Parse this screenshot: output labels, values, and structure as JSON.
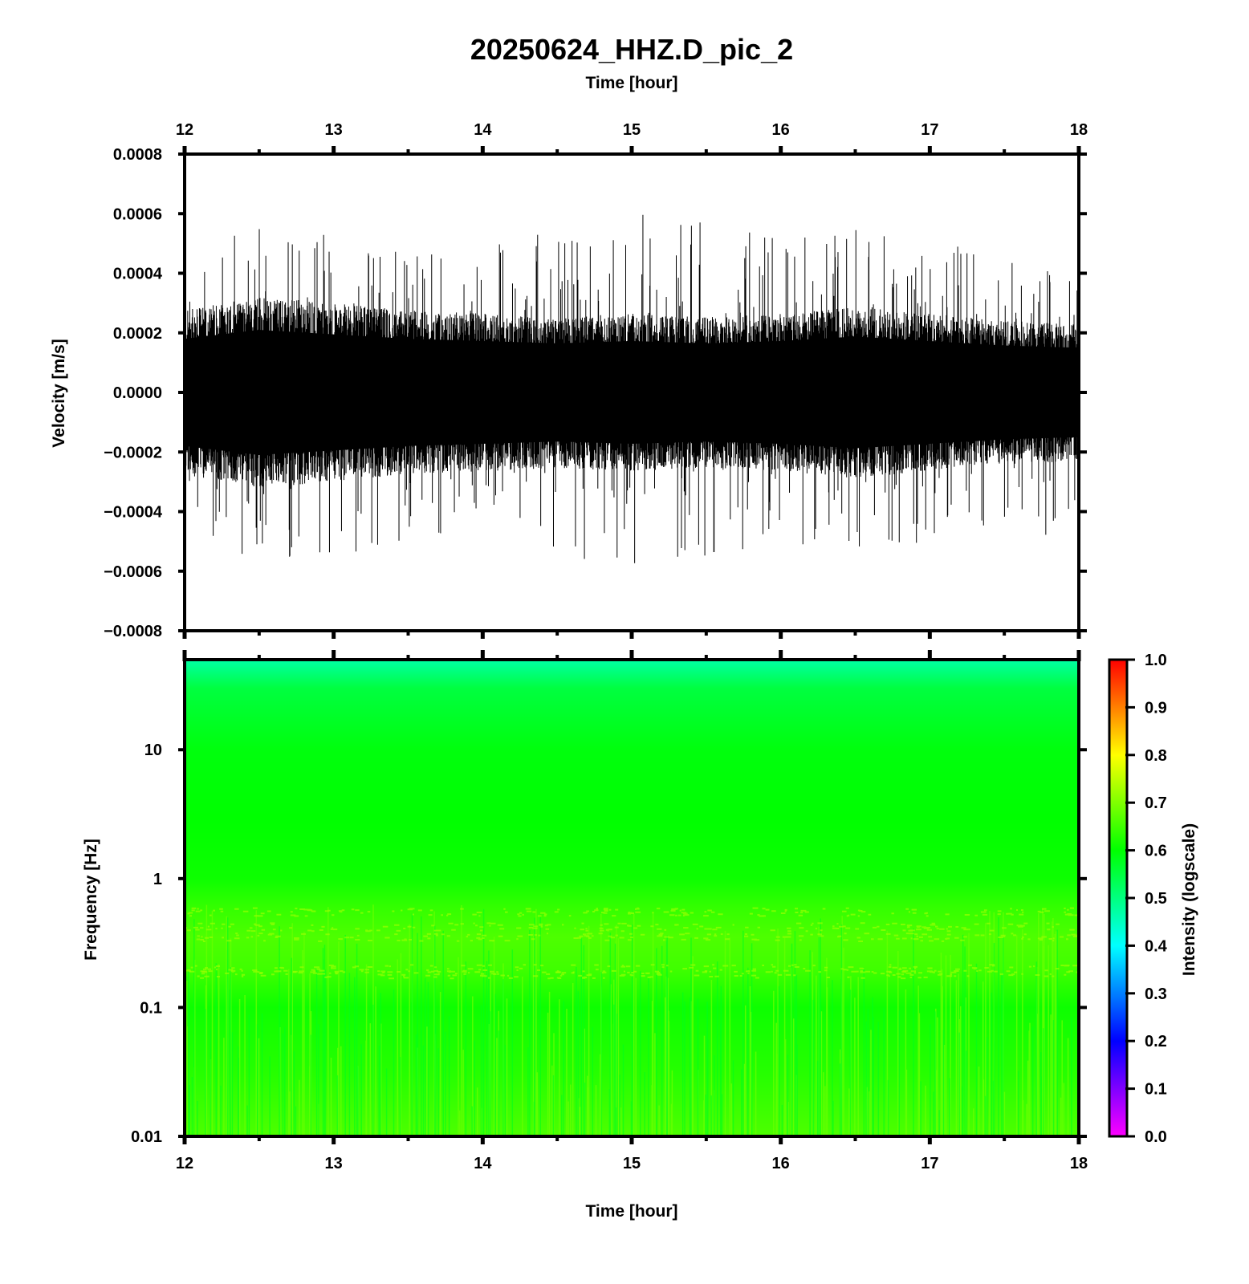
{
  "title": "20250624_HHZ.D_pic_2",
  "chart_data": [
    {
      "type": "line",
      "name": "waveform",
      "xlabel": "Time [hour]",
      "ylabel": "Velocity [m/s]",
      "xlim": [
        12,
        18
      ],
      "ylim": [
        -0.0008,
        0.0008
      ],
      "x_ticks": [
        "12",
        "13",
        "14",
        "15",
        "16",
        "17",
        "18"
      ],
      "y_ticks": [
        "0.0008",
        "0.0006",
        "0.0004",
        "0.0002",
        "0.0000",
        "−0.0002",
        "−0.0004",
        "−0.0006",
        "−0.0008"
      ],
      "x_tick_values": [
        12,
        13,
        14,
        15,
        16,
        17,
        18
      ],
      "y_tick_values": [
        0.0008,
        0.0006,
        0.0004,
        0.0002,
        0.0,
        -0.0002,
        -0.0004,
        -0.0006,
        -0.0008
      ],
      "envelope": {
        "x": [
          12,
          12.5,
          13,
          13.5,
          14,
          14.5,
          15,
          15.5,
          16,
          16.5,
          17,
          17.5,
          18
        ],
        "dense_amplitude": [
          0.00024,
          0.00028,
          0.00026,
          0.00024,
          0.00023,
          0.00022,
          0.00023,
          0.00022,
          0.00023,
          0.00025,
          0.00023,
          0.00021,
          0.0002
        ],
        "peak_amplitude": [
          0.00045,
          0.00058,
          0.00055,
          0.00052,
          0.0005,
          0.00055,
          0.0006,
          0.00058,
          0.00052,
          0.00055,
          0.0005,
          0.00048,
          0.00048
        ]
      }
    },
    {
      "type": "heatmap",
      "name": "spectrogram",
      "xlabel": "Time [hour]",
      "ylabel": "Frequency [Hz]",
      "xlim": [
        12,
        18
      ],
      "ylim": [
        0.01,
        50
      ],
      "yscale": "log",
      "x_ticks": [
        "12",
        "13",
        "14",
        "15",
        "16",
        "17",
        "18"
      ],
      "y_ticks": [
        "10",
        "1",
        "0.1",
        "0.01"
      ],
      "x_tick_values": [
        12,
        13,
        14,
        15,
        16,
        17,
        18
      ],
      "y_tick_values": [
        10,
        1,
        0.1,
        0.01
      ],
      "intensity_profile": {
        "frequency_hz": [
          50,
          30,
          10,
          3,
          1,
          0.6,
          0.35,
          0.2,
          0.1,
          0.03,
          0.01
        ],
        "intensity": [
          0.47,
          0.55,
          0.59,
          0.6,
          0.61,
          0.64,
          0.66,
          0.65,
          0.61,
          0.63,
          0.66
        ]
      },
      "colorbar": {
        "label": "Intensity (logscale)",
        "range": [
          0.0,
          1.0
        ],
        "ticks": [
          "1.0",
          "0.9",
          "0.8",
          "0.7",
          "0.6",
          "0.5",
          "0.4",
          "0.3",
          "0.2",
          "0.1",
          "0.0"
        ],
        "tick_values": [
          1.0,
          0.9,
          0.8,
          0.7,
          0.6,
          0.5,
          0.4,
          0.3,
          0.2,
          0.1,
          0.0
        ],
        "colormap": [
          "#ff00ff",
          "#0000ff",
          "#00ffff",
          "#00ff00",
          "#ffff00",
          "#ff0000"
        ]
      }
    }
  ]
}
